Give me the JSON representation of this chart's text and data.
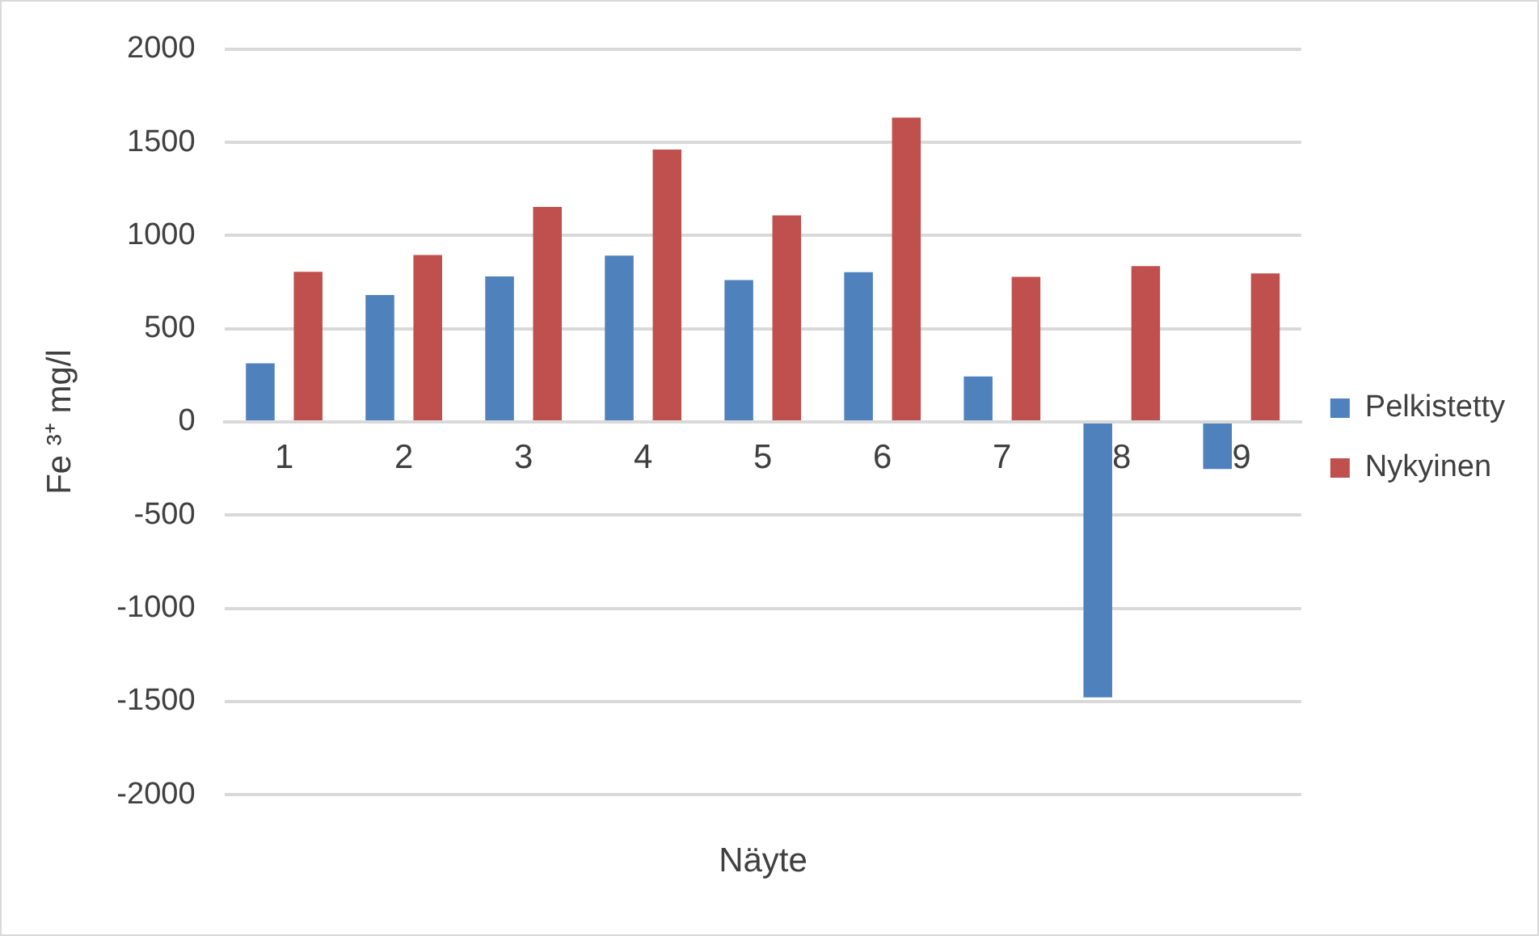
{
  "chart_data": {
    "type": "bar",
    "xlabel": "Näyte",
    "ylabel": "Fe ³⁺ mg/l",
    "categories": [
      "1",
      "2",
      "3",
      "4",
      "5",
      "6",
      "7",
      "8",
      "9"
    ],
    "series": [
      {
        "name": "Pelkistetty",
        "color": "#4f81bd",
        "values": [
          314,
          681,
          781,
          892,
          761,
          803,
          244,
          -1478,
          -253
        ]
      },
      {
        "name": "Nykyinen",
        "color": "#c0504d",
        "values": [
          806,
          895,
          1153,
          1461,
          1108,
          1633,
          778,
          836,
          797
        ]
      }
    ],
    "ylim": [
      -2000,
      2000
    ],
    "yticks": [
      -2000,
      -1500,
      -1000,
      -500,
      0,
      500,
      1000,
      1500,
      2000
    ],
    "grid": "y",
    "legend": "right"
  }
}
